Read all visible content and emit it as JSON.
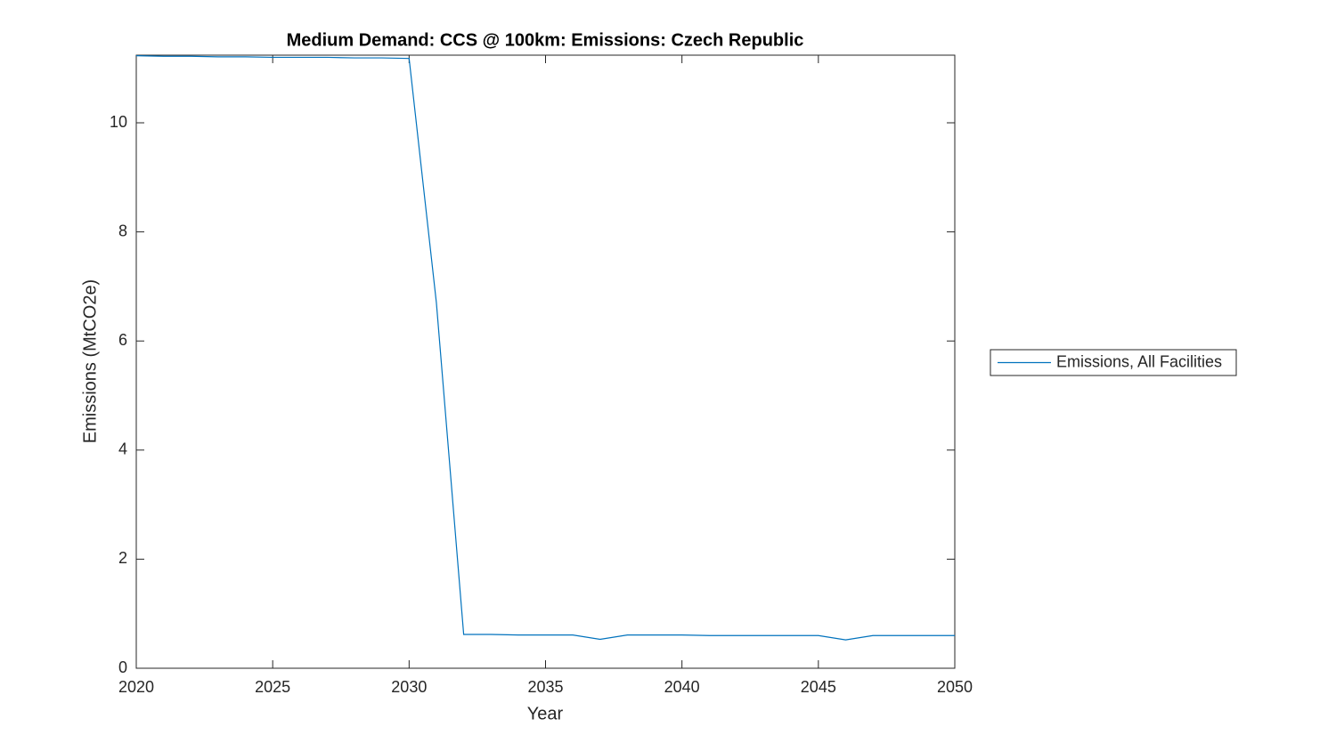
{
  "chart_data": {
    "type": "line",
    "title": "Medium Demand: CCS @ 100km: Emissions: Czech Republic",
    "x_label": "Year",
    "y_label": "Emissions (MtCO2e)",
    "x": [
      2020,
      2021,
      2022,
      2023,
      2024,
      2025,
      2026,
      2027,
      2028,
      2029,
      2030,
      2031,
      2032,
      2033,
      2034,
      2035,
      2036,
      2037,
      2038,
      2039,
      2040,
      2041,
      2042,
      2043,
      2044,
      2045,
      2046,
      2047,
      2048,
      2049,
      2050
    ],
    "series": [
      {
        "name": "Emissions, All Facilities",
        "color": "#0072bd",
        "values": [
          11.23,
          11.22,
          11.22,
          11.21,
          11.21,
          11.2,
          11.2,
          11.2,
          11.19,
          11.19,
          11.18,
          6.7,
          0.62,
          0.62,
          0.61,
          0.61,
          0.61,
          0.53,
          0.61,
          0.61,
          0.61,
          0.6,
          0.6,
          0.6,
          0.6,
          0.6,
          0.52,
          0.6,
          0.6,
          0.6,
          0.6
        ]
      }
    ],
    "xlim": [
      2020,
      2050
    ],
    "xticks": [
      2020,
      2025,
      2030,
      2035,
      2040,
      2045,
      2050
    ],
    "ylim": [
      0,
      11.24
    ],
    "yticks": [
      0,
      2,
      4,
      6,
      8,
      10
    ],
    "grid": false,
    "legend": "right"
  }
}
